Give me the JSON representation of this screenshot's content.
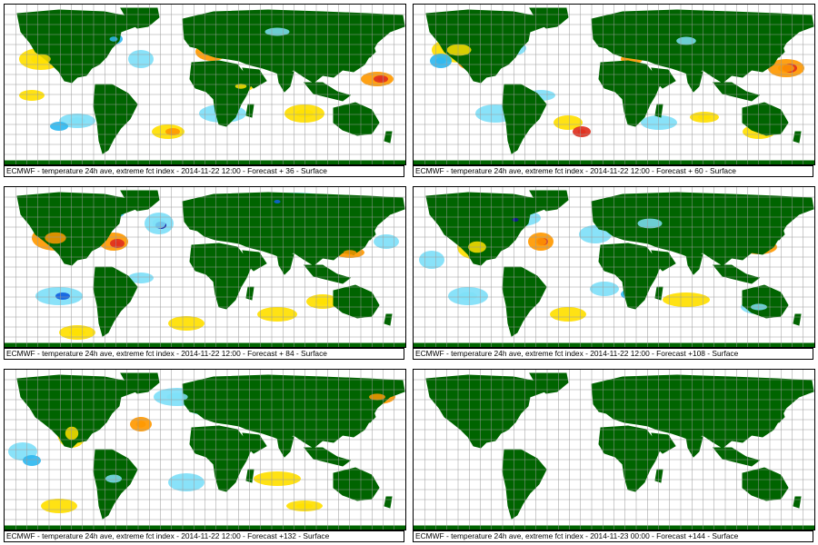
{
  "panels": [
    {
      "caption": "ECMWF - temperature 24h ave, extreme fct index - 2014-11-22 12:00 - Forecast + 36 - Surface",
      "has_anomaly": true
    },
    {
      "caption": "ECMWF - temperature 24h ave, extreme fct index - 2014-11-22 12:00 - Forecast + 60 - Surface",
      "has_anomaly": true
    },
    {
      "caption": "ECMWF - temperature 24h ave, extreme fct index - 2014-11-22 12:00 - Forecast + 84 - Surface",
      "has_anomaly": true
    },
    {
      "caption": "ECMWF - temperature 24h ave, extreme fct index - 2014-11-22 12:00 - Forecast +108 - Surface",
      "has_anomaly": true
    },
    {
      "caption": "ECMWF - temperature 24h ave, extreme fct index - 2014-11-22 12:00 - Forecast +132 - Surface",
      "has_anomaly": true
    },
    {
      "caption": "ECMWF - temperature 24h ave, extreme fct index - 2014-11-23 00:00 - Forecast +144 - Surface",
      "has_anomaly": false
    }
  ],
  "colors": {
    "land": "#006400",
    "ocean": "#ffffff",
    "grid": "#9a9a9a",
    "warm_light": "#ffe000",
    "warm_mid": "#ff9900",
    "warm_strong": "#e0301e",
    "warm_extreme": "#a00000",
    "cold_light": "#7fe0f8",
    "cold_mid": "#2fb8f0",
    "cold_strong": "#1060e0",
    "cold_extreme": "#1010a0"
  }
}
